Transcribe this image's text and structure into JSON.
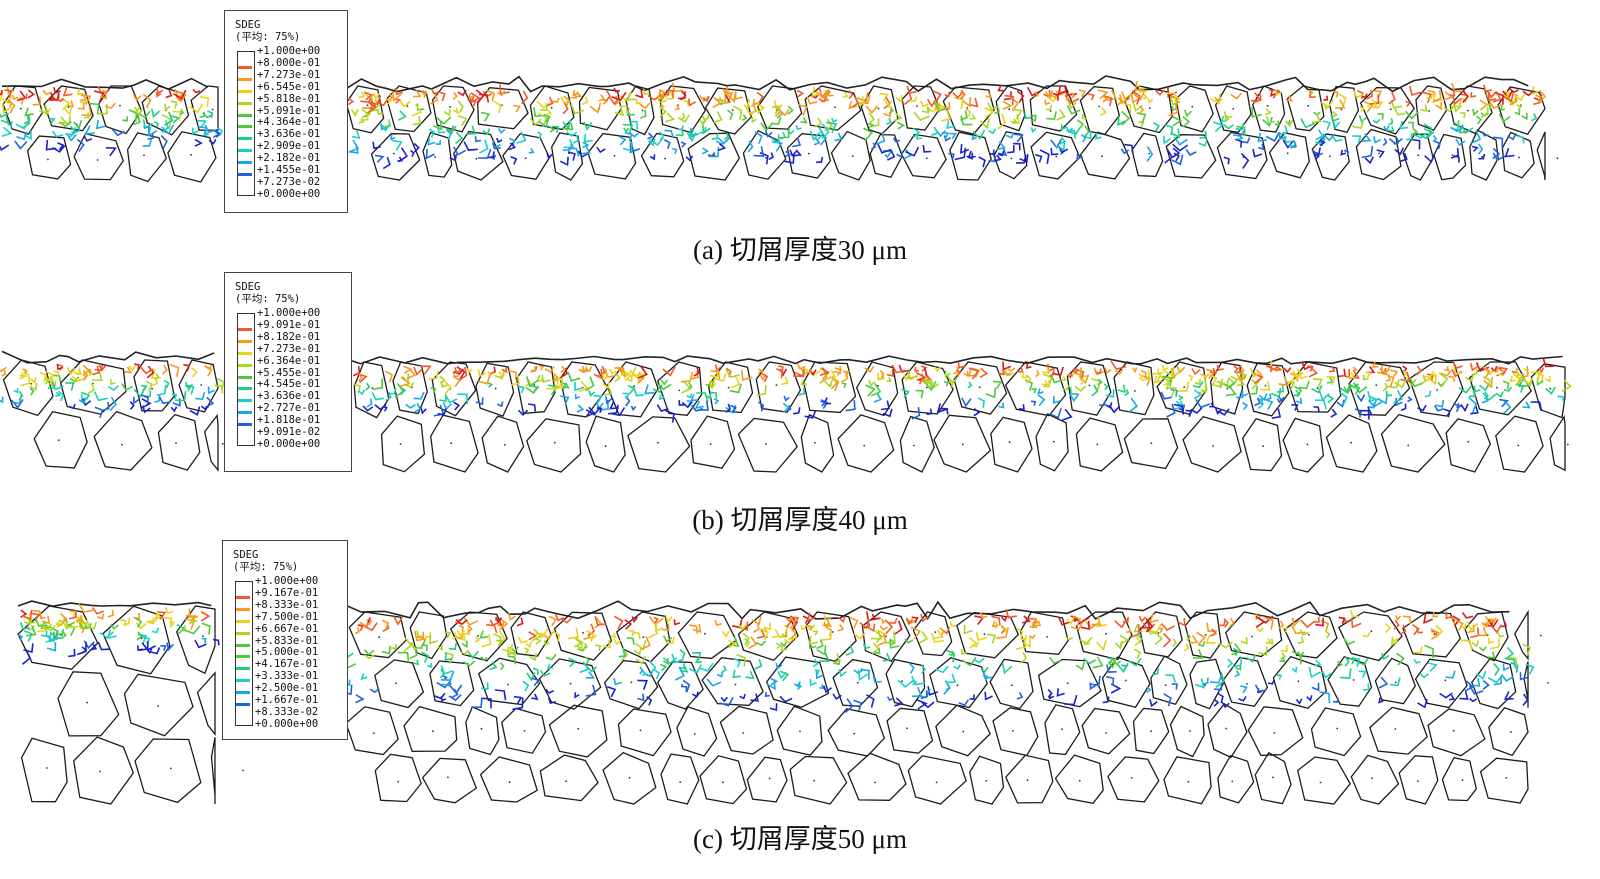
{
  "panels": [
    {
      "caption": "(a) 切屑厚度30 μm",
      "legend": {
        "title": "SDEG",
        "subtitle": "(平均: 75%)",
        "values": [
          "+1.000e+00",
          "+8.000e-01",
          "+7.273e-01",
          "+6.545e-01",
          "+5.818e-01",
          "+5.091e-01",
          "+4.364e-01",
          "+3.636e-01",
          "+2.909e-01",
          "+2.182e-01",
          "+1.455e-01",
          "+7.273e-02",
          "+0.000e+00"
        ]
      }
    },
    {
      "caption": "(b) 切屑厚度40 μm",
      "legend": {
        "title": "SDEG",
        "subtitle": "(平均: 75%)",
        "values": [
          "+1.000e+00",
          "+9.091e-01",
          "+8.182e-01",
          "+7.273e-01",
          "+6.364e-01",
          "+5.455e-01",
          "+4.545e-01",
          "+3.636e-01",
          "+2.727e-01",
          "+1.818e-01",
          "+9.091e-02",
          "+0.000e+00"
        ]
      }
    },
    {
      "caption": "(c) 切屑厚度50 μm",
      "legend": {
        "title": "SDEG",
        "subtitle": "(平均: 75%)",
        "values": [
          "+1.000e+00",
          "+9.167e-01",
          "+8.333e-01",
          "+7.500e-01",
          "+6.667e-01",
          "+5.833e-01",
          "+5.000e-01",
          "+4.167e-01",
          "+3.333e-01",
          "+2.500e-01",
          "+1.667e-01",
          "+8.333e-02",
          "+0.000e+00"
        ]
      }
    }
  ],
  "colormap": [
    "#d7191c",
    "#f1592a",
    "#f79a1c",
    "#e8d21a",
    "#a9d71f",
    "#4fc93a",
    "#1fcf7c",
    "#18d1c4",
    "#1aa7e6",
    "#1f64de",
    "#1a22c8"
  ]
}
